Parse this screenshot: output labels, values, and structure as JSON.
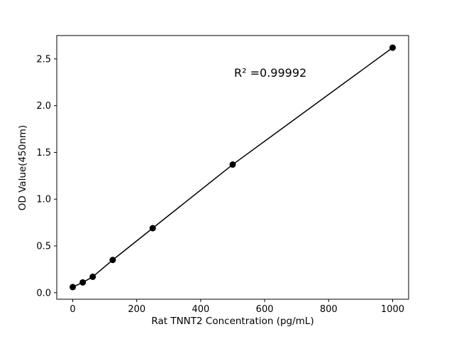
{
  "chart_data": {
    "type": "scatter",
    "title": "",
    "xlabel": "Rat TNNT2 Concentration (pg/mL)",
    "ylabel": "OD Value(450nm)",
    "x": [
      0,
      31.25,
      62.5,
      125,
      250,
      500,
      1000
    ],
    "y": [
      0.06,
      0.11,
      0.17,
      0.35,
      0.69,
      1.37,
      2.62
    ],
    "xlim": [
      -50,
      1050
    ],
    "ylim": [
      -0.07,
      2.75
    ],
    "xticks": [
      0,
      200,
      400,
      600,
      800,
      1000
    ],
    "yticks": [
      0,
      0.5,
      1,
      1.5,
      2,
      2.5
    ],
    "annotation": {
      "text": "R² =0.99992"
    },
    "grid": false,
    "legend": false,
    "line_color": "#000000",
    "marker_color": "#000000",
    "background_color": "#ffffff"
  }
}
